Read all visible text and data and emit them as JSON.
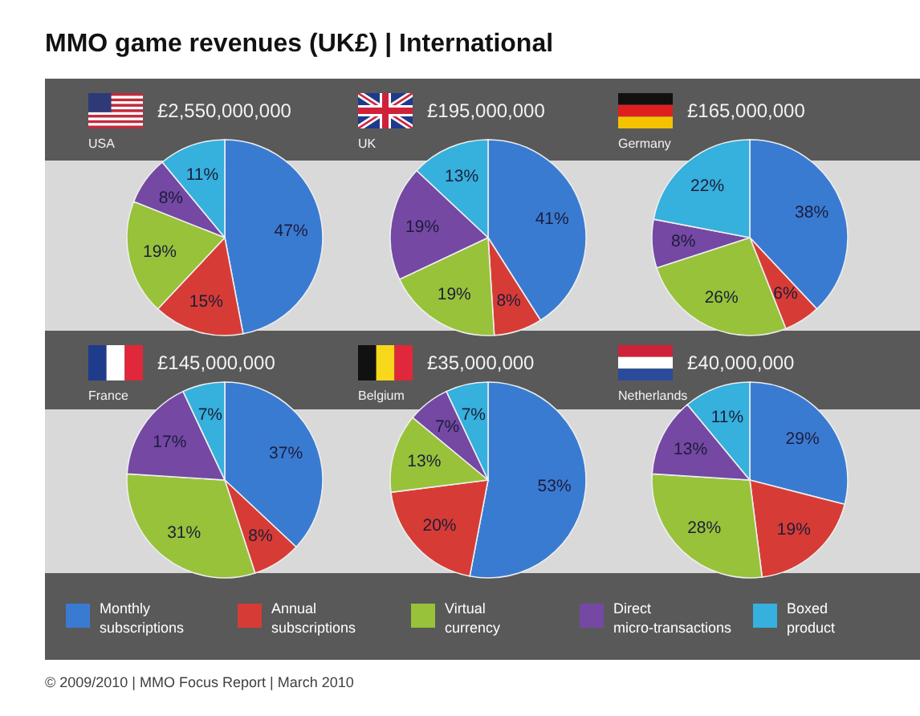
{
  "chart_data": {
    "type": "pie",
    "title": "MMO game revenues (UK£) | International",
    "categories": [
      "Monthly subscriptions",
      "Annual subscriptions",
      "Virtual currency",
      "Direct micro-transactions",
      "Boxed product"
    ],
    "colors": [
      "#3a7bd2",
      "#d63c35",
      "#97c23a",
      "#7448a3",
      "#36b0dc"
    ],
    "series": [
      {
        "name": "USA",
        "values": [
          47,
          15,
          19,
          8,
          11
        ],
        "value_labels": [
          "47%",
          "15%",
          "19%",
          "8%",
          "11%"
        ]
      },
      {
        "name": "UK",
        "values": [
          41,
          8,
          19,
          19,
          13
        ],
        "value_labels": [
          "41%",
          "8%",
          "19%",
          "19%",
          "13%"
        ]
      },
      {
        "name": "Germany",
        "values": [
          38,
          6,
          26,
          8,
          22
        ],
        "value_labels": [
          "38%",
          "6%",
          "26%",
          "8%",
          "22%"
        ]
      },
      {
        "name": "France",
        "values": [
          37,
          8,
          31,
          17,
          7
        ],
        "value_labels": [
          "37%",
          "8%",
          "31%",
          "17%",
          "7%"
        ]
      },
      {
        "name": "Belgium",
        "values": [
          53,
          20,
          13,
          7,
          7
        ],
        "value_labels": [
          "53%",
          "20%",
          "13%",
          "7%",
          "7%"
        ]
      },
      {
        "name": "Netherlands",
        "values": [
          29,
          19,
          28,
          13,
          11
        ],
        "value_labels": [
          "29%",
          "19%",
          "28%",
          "13%",
          "11%"
        ]
      }
    ],
    "annotations": [
      "£2,550,000,000",
      "£195,000,000",
      "£165,000,000",
      "£145,000,000",
      "£35,000,000",
      "£40,000,000",
      "© 2009/2010 | MMO Focus Report | March 2010"
    ],
    "legend": "bottom"
  }
}
